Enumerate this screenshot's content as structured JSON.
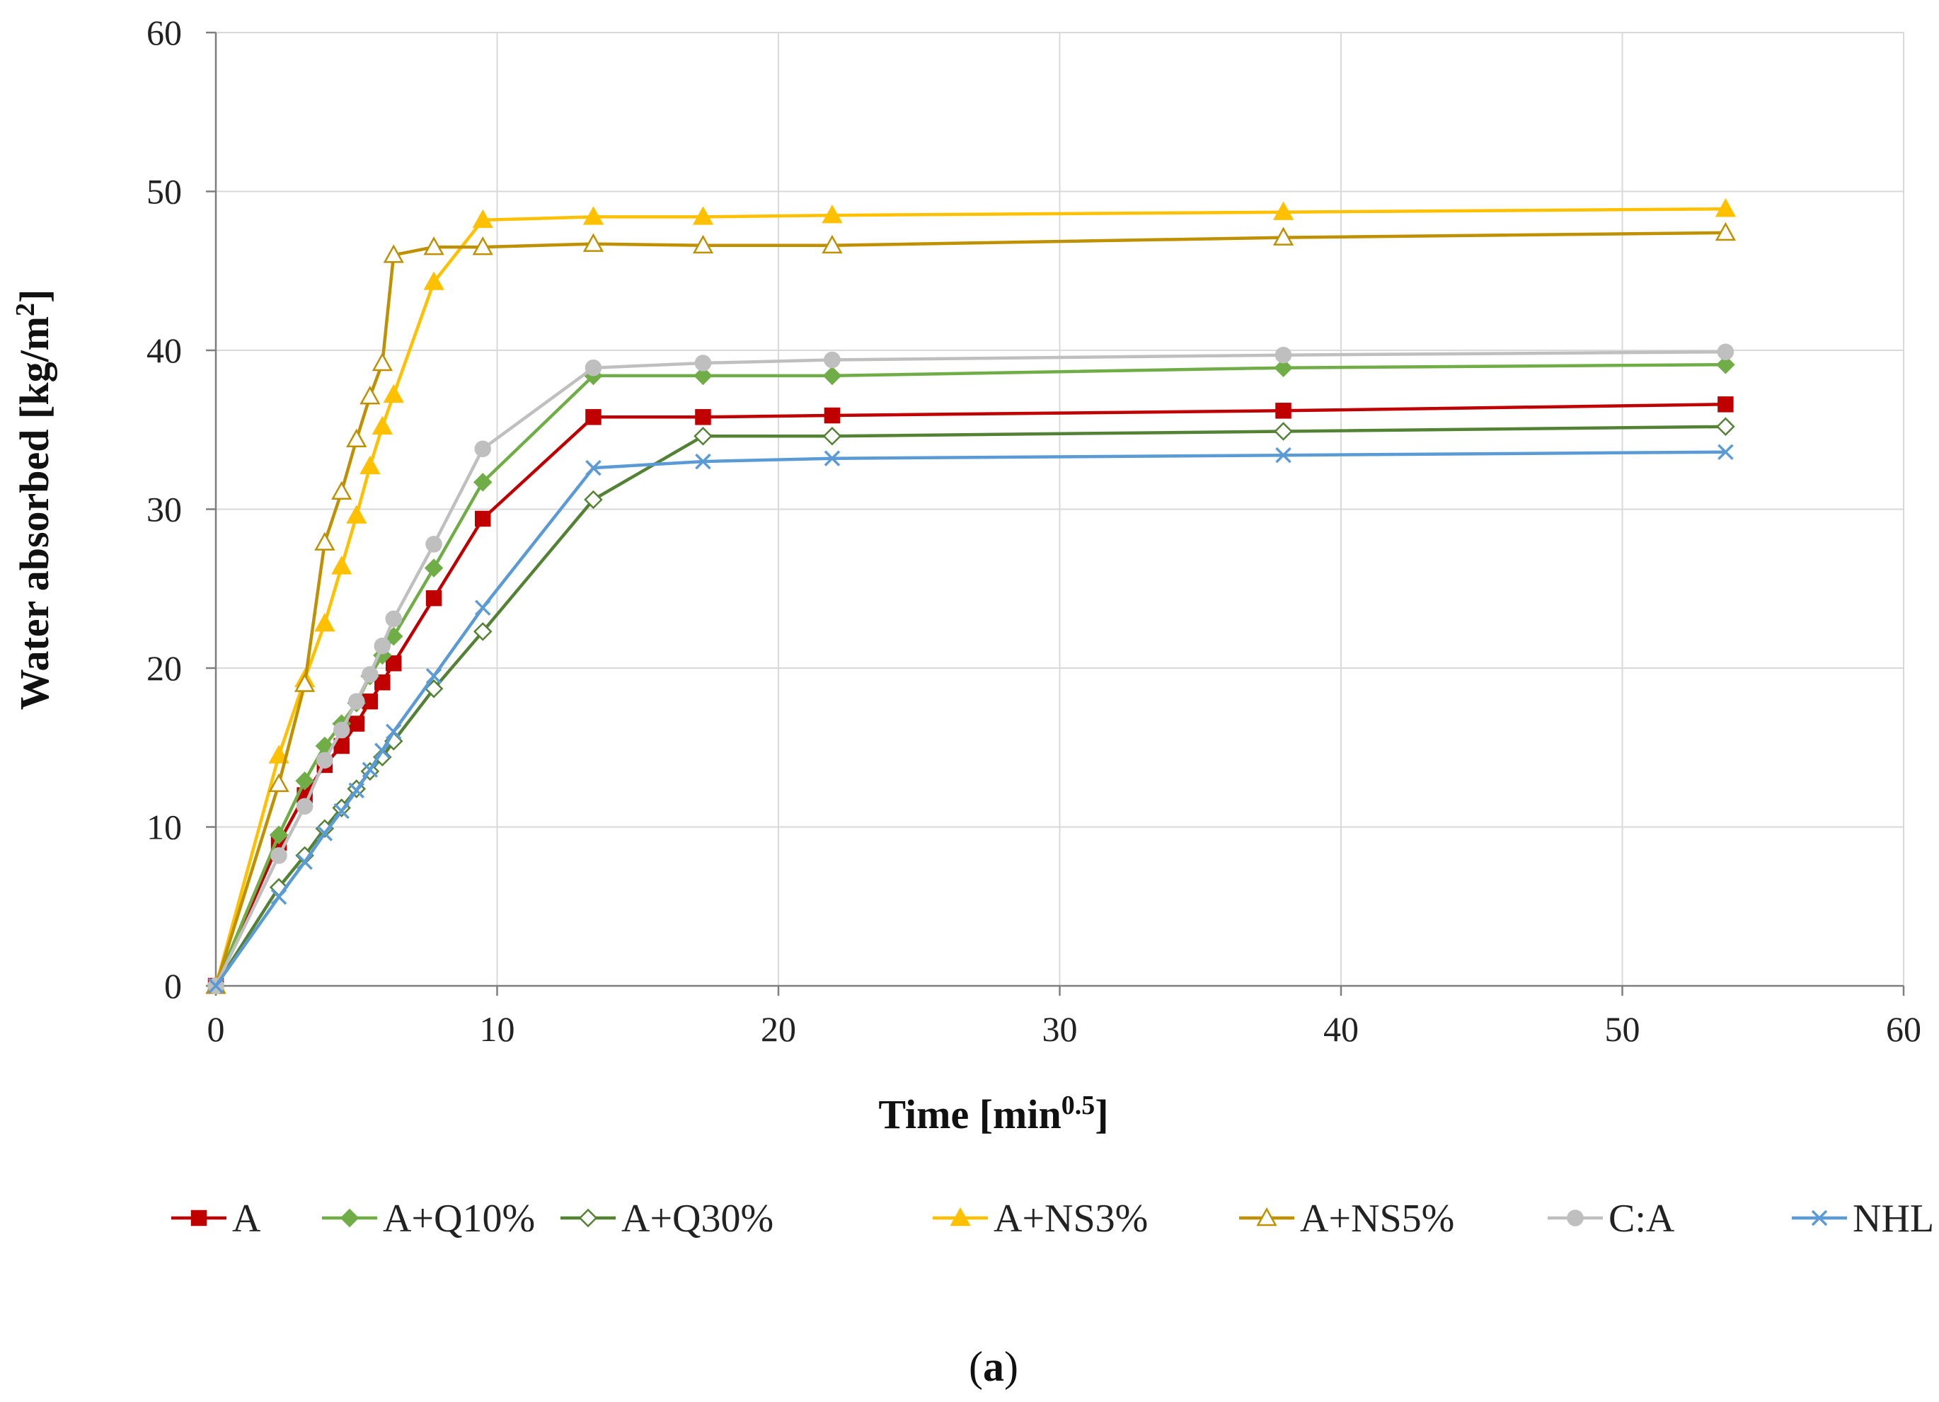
{
  "chart_data": {
    "type": "line",
    "title": "",
    "xlabel": "Time [min",
    "xlabel_sup": "0.5",
    "xlabel_end": "]",
    "ylabel": "Water absorbed [kg/m",
    "ylabel_sup": "2",
    "ylabel_end": "]",
    "xlim": [
      0,
      60
    ],
    "ylim": [
      0,
      60
    ],
    "xticks": [
      0,
      10,
      20,
      30,
      40,
      50,
      60
    ],
    "yticks": [
      0,
      10,
      20,
      30,
      40,
      50,
      60
    ],
    "grid": true,
    "legend_position": "bottom",
    "caption_open": "(",
    "caption_letter": "a",
    "caption_close": ")",
    "series": [
      {
        "name": "A",
        "color": "#C00000",
        "marker": "square",
        "filled": true,
        "x": [
          0,
          2.24,
          3.16,
          3.87,
          4.47,
          5.0,
          5.48,
          5.92,
          6.32,
          7.75,
          9.49,
          13.42,
          17.32,
          21.91,
          37.95,
          53.67
        ],
        "y": [
          0,
          9.0,
          12.0,
          13.9,
          15.1,
          16.5,
          17.9,
          19.1,
          20.3,
          24.4,
          29.4,
          35.8,
          35.8,
          35.9,
          36.2,
          36.6
        ]
      },
      {
        "name": "A+Q10%",
        "color": "#70AD47",
        "marker": "diamond",
        "filled": true,
        "x": [
          0,
          2.24,
          3.16,
          3.87,
          4.47,
          5.0,
          5.48,
          5.92,
          6.32,
          7.75,
          9.49,
          13.42,
          17.32,
          21.91,
          37.95,
          53.67
        ],
        "y": [
          0,
          9.5,
          12.9,
          15.1,
          16.5,
          17.8,
          19.5,
          20.8,
          22.0,
          26.3,
          31.7,
          38.4,
          38.4,
          38.4,
          38.9,
          39.1
        ]
      },
      {
        "name": "A+Q30%",
        "color": "#548235",
        "marker": "diamond",
        "filled": false,
        "x": [
          0,
          2.24,
          3.16,
          3.87,
          4.47,
          5.0,
          5.48,
          5.92,
          6.32,
          7.75,
          9.49,
          13.42,
          17.32,
          21.91,
          37.95,
          53.67
        ],
        "y": [
          0,
          6.2,
          8.2,
          9.9,
          11.2,
          12.4,
          13.5,
          14.4,
          15.4,
          18.7,
          22.3,
          30.6,
          34.6,
          34.6,
          34.9,
          35.2
        ]
      },
      {
        "name": "A+NS3%",
        "color": "#FFC000",
        "marker": "triangle",
        "filled": true,
        "x": [
          0,
          2.24,
          3.16,
          3.87,
          4.47,
          5.0,
          5.48,
          5.92,
          6.32,
          7.75,
          9.49,
          13.42,
          17.32,
          21.91,
          37.95,
          53.67
        ],
        "y": [
          0,
          14.5,
          19.3,
          22.8,
          26.4,
          29.6,
          32.7,
          35.2,
          37.2,
          44.3,
          48.2,
          48.4,
          48.4,
          48.5,
          48.7,
          48.9
        ]
      },
      {
        "name": "A+NS5%",
        "color": "#BF9000",
        "marker": "triangle",
        "filled": false,
        "x": [
          0,
          2.24,
          3.16,
          3.87,
          4.47,
          5.0,
          5.48,
          5.92,
          6.32,
          7.75,
          9.49,
          13.42,
          17.32,
          21.91,
          37.95,
          53.67
        ],
        "y": [
          0,
          12.7,
          19.0,
          27.9,
          31.1,
          34.4,
          37.1,
          39.2,
          46.0,
          46.5,
          46.5,
          46.7,
          46.6,
          46.6,
          47.1,
          47.4
        ]
      },
      {
        "name": "C:A",
        "color": "#BFBFBF",
        "marker": "circle",
        "filled": true,
        "x": [
          0,
          2.24,
          3.16,
          3.87,
          4.47,
          5.0,
          5.48,
          5.92,
          6.32,
          7.75,
          9.49,
          13.42,
          17.32,
          21.91,
          37.95,
          53.67
        ],
        "y": [
          0,
          8.2,
          11.3,
          14.2,
          16.1,
          17.9,
          19.6,
          21.4,
          23.1,
          27.8,
          33.8,
          38.9,
          39.2,
          39.4,
          39.7,
          39.9
        ]
      },
      {
        "name": "NHL",
        "color": "#5B9BD5",
        "marker": "x",
        "filled": false,
        "x": [
          0,
          2.24,
          3.16,
          3.87,
          4.47,
          5.0,
          5.48,
          5.92,
          6.32,
          7.75,
          9.49,
          13.42,
          17.32,
          21.91,
          37.95,
          53.67
        ],
        "y": [
          0,
          5.6,
          7.8,
          9.6,
          11.0,
          12.3,
          13.6,
          14.8,
          16.0,
          19.5,
          23.8,
          32.6,
          33.0,
          33.2,
          33.4,
          33.6
        ]
      }
    ]
  }
}
